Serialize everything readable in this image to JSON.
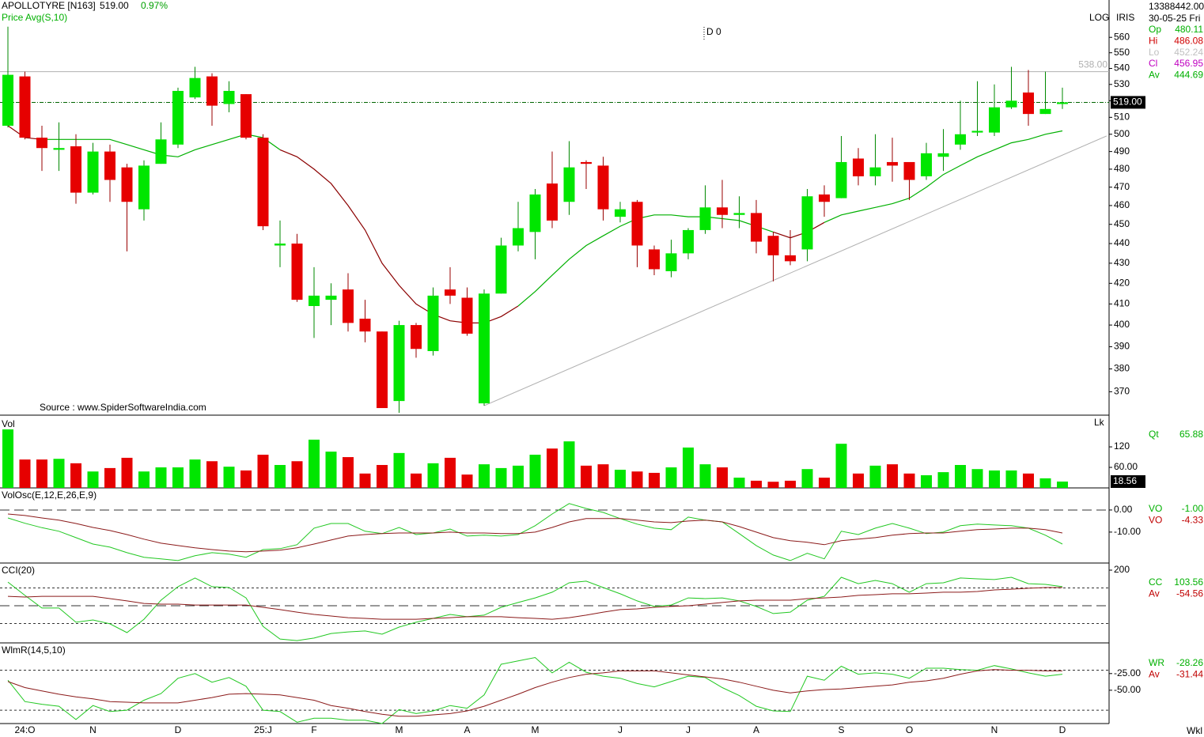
{
  "header": {
    "symbol": "APOLLOTYRE [N163]",
    "price": "519.00",
    "change": "0.97%",
    "marker": "D 0",
    "scale": "LOG",
    "name": "IRIS",
    "source": "Source : www.SpiderSoftwareIndia.com",
    "period": "Wkl",
    "total": "13388442.00",
    "date": "30-05-25 Fri"
  },
  "chart_data": [
    {
      "type": "candlestick",
      "log": true,
      "up_color": "#00e600",
      "down_color": "#e60000",
      "categories": [
        null,
        "24:O",
        null,
        null,
        null,
        "N",
        null,
        null,
        null,
        null,
        "D",
        null,
        null,
        null,
        null,
        "25:J",
        null,
        null,
        "F",
        null,
        null,
        null,
        null,
        "M",
        null,
        null,
        null,
        "A",
        null,
        null,
        null,
        "M",
        null,
        null,
        null,
        null,
        "J",
        null,
        null,
        null,
        "J",
        null,
        null,
        null,
        "A",
        null,
        null,
        null,
        null,
        "S",
        null,
        null,
        null,
        "O",
        null,
        null,
        null,
        null,
        "N",
        null,
        null,
        null,
        "D"
      ],
      "open": [
        505,
        535,
        498,
        491,
        493,
        467,
        490,
        481,
        458,
        483,
        494,
        522,
        535,
        518,
        524,
        498,
        439,
        440,
        409,
        412,
        417,
        403,
        397,
        366,
        400,
        388,
        417,
        413,
        365,
        415,
        439,
        446,
        472,
        462,
        484,
        482,
        454,
        462,
        437,
        426,
        435,
        447,
        459,
        455,
        456,
        444,
        434,
        437,
        466,
        464,
        486,
        476,
        484,
        484,
        476,
        487,
        494,
        501,
        501,
        516,
        525,
        512,
        518
      ],
      "high": [
        567,
        538,
        505,
        507,
        500,
        495,
        494,
        483,
        485,
        507,
        528,
        541,
        537,
        532,
        524,
        500,
        452,
        445,
        428,
        420,
        425,
        412,
        397,
        402,
        401,
        418,
        428,
        418,
        417,
        443,
        462,
        469,
        490,
        496,
        485,
        487,
        462,
        463,
        439,
        442,
        448,
        471,
        474,
        465,
        463,
        446,
        447,
        469,
        471,
        499,
        492,
        500,
        498,
        484,
        495,
        503,
        520,
        532,
        530,
        541,
        539,
        538,
        528
      ],
      "low": [
        504,
        497,
        479,
        479,
        461,
        466,
        462,
        436,
        452,
        483,
        492,
        521,
        505,
        513,
        497,
        447,
        428,
        411,
        394,
        400,
        397,
        392,
        363,
        361,
        385,
        386,
        410,
        395,
        364,
        415,
        436,
        432,
        448,
        455,
        469,
        452,
        451,
        428,
        424,
        423,
        432,
        445,
        448,
        448,
        435,
        421,
        429,
        431,
        454,
        464,
        471,
        471,
        473,
        463,
        474,
        479,
        491,
        499,
        499,
        515,
        505,
        512,
        515
      ],
      "close": [
        536,
        498,
        492,
        492,
        467,
        490,
        474,
        462,
        482,
        497,
        526,
        534,
        517,
        526,
        498,
        449,
        440,
        412,
        414,
        414,
        401,
        397,
        363,
        400,
        389,
        414,
        414,
        396,
        415,
        439,
        448,
        466,
        452,
        481,
        483,
        458,
        458,
        439,
        427,
        435,
        447,
        459,
        455,
        456,
        441,
        434,
        431,
        465,
        462,
        484,
        476,
        481,
        482,
        474,
        489,
        489,
        500,
        502,
        516,
        520,
        512,
        515,
        519
      ],
      "ylim": [
        360,
        585
      ],
      "yticks": [
        370,
        380,
        390,
        400,
        410,
        420,
        430,
        440,
        450,
        460,
        470,
        480,
        490,
        500,
        510,
        520,
        530,
        540,
        550,
        560
      ],
      "series": [
        {
          "name": "Price Avg(S,10)",
          "color": "#00b000",
          "values": [
            505,
            498,
            497,
            497,
            497,
            497,
            497,
            494,
            491,
            488,
            487,
            491,
            494,
            497,
            500,
            498,
            491,
            487,
            480,
            472,
            460,
            447,
            430,
            419,
            410,
            405,
            402,
            401,
            401,
            404,
            409,
            416,
            424,
            432,
            439,
            444,
            449,
            453,
            455,
            455,
            454,
            454,
            453,
            452,
            449,
            446,
            443,
            446,
            451,
            455,
            457,
            459,
            461,
            464,
            470,
            477,
            482,
            487,
            491,
            495,
            497,
            500,
            502
          ],
          "colors": [
            "#8b0000",
            "#8b0000",
            "#00b000",
            "#00b000",
            "#00b000",
            "#00b000",
            "#00b000",
            "#00b000",
            "#00b000",
            "#00b000",
            "#00b000",
            "#00b000",
            "#00b000",
            "#00b000",
            "#00b000",
            "#00b000",
            "#8b0000",
            "#8b0000",
            "#8b0000",
            "#8b0000",
            "#8b0000",
            "#8b0000",
            "#8b0000",
            "#8b0000",
            "#8b0000",
            "#8b0000",
            "#8b0000",
            "#8b0000",
            "#8b0000",
            "#8b0000",
            "#00b000",
            "#00b000",
            "#00b000",
            "#00b000",
            "#00b000",
            "#00b000",
            "#00b000",
            "#00b000",
            "#00b000",
            "#00b000",
            "#00b000",
            "#00b000",
            "#00b000",
            "#00b000",
            "#00b000",
            "#8b0000",
            "#8b0000",
            "#8b0000",
            "#00b000",
            "#00b000",
            "#00b000",
            "#00b000",
            "#00b000",
            "#00b000",
            "#00b000",
            "#00b000",
            "#00b000",
            "#00b000",
            "#00b000",
            "#00b000",
            "#00b000",
            "#00b000",
            "#00b000"
          ]
        }
      ],
      "hlines": [
        {
          "value": 538,
          "label": "538.00",
          "color": "#b0b0b0"
        },
        {
          "value": 519,
          "label": "519.00",
          "color": "#006400"
        }
      ],
      "trendline": {
        "x": [
          28,
          64.6
        ],
        "y": [
          364,
          499
        ],
        "color": "#b0b0b0"
      },
      "readout": [
        {
          "label": "Op",
          "value": 480.11,
          "color": "#00b000"
        },
        {
          "label": "Hi",
          "value": 486.08,
          "color": "#d00000"
        },
        {
          "label": "Lo",
          "value": 452.24,
          "color": "#c0c0c0"
        },
        {
          "label": "Cl",
          "value": 456.95,
          "color": "#c000c0"
        },
        {
          "label": "Av",
          "value": 444.69,
          "color": "#00b000"
        }
      ]
    },
    {
      "type": "bar",
      "title": "Vol",
      "unit": "Lk",
      "ylim": [
        0,
        208
      ],
      "yticks": [
        120,
        {
          "value": 60,
          "label": "60.00"
        }
      ],
      "values": [
        171,
        83,
        83,
        85,
        72,
        48,
        58,
        88,
        48,
        60,
        60,
        83,
        78,
        62,
        51,
        97,
        67,
        78,
        141,
        106,
        90,
        42,
        67,
        102,
        42,
        72,
        88,
        39,
        69,
        58,
        65,
        97,
        115,
        136,
        65,
        69,
        53,
        48,
        44,
        60,
        118,
        69,
        60,
        30,
        21,
        18,
        21,
        55,
        30,
        129,
        42,
        65,
        69,
        42,
        37,
        46,
        67,
        55,
        51,
        51,
        42,
        28,
        18.56
      ],
      "readout": [
        {
          "label": "Qt",
          "value": 65.88,
          "color": "#00b000"
        }
      ]
    },
    {
      "type": "line",
      "title": "VolOsc(E,12,E,26,E,9)",
      "ylim": [
        -24,
        10
      ],
      "yticks": [
        {
          "value": 0,
          "label": "0.00"
        },
        {
          "value": -10,
          "label": "-10.00"
        }
      ],
      "hlines": [
        0
      ],
      "series": [
        {
          "color": "#22c822",
          "values": [
            -3.6,
            -6,
            -8,
            -9.6,
            -12.5,
            -15.4,
            -16.8,
            -19.3,
            -21.4,
            -22.1,
            -22.9,
            -20.7,
            -19.3,
            -20,
            -21.4,
            -17.9,
            -17.5,
            -15.7,
            -8.2,
            -6.1,
            -6.1,
            -9.6,
            -10.7,
            -7.9,
            -11.1,
            -10.4,
            -8.6,
            -11.8,
            -11.4,
            -11.8,
            -11.1,
            -7.1,
            -1.8,
            2.9,
            0.7,
            -1.1,
            -3.9,
            -6.4,
            -8.2,
            -8.9,
            -3.2,
            -4.6,
            -5.4,
            -10.7,
            -16.1,
            -20.4,
            -22.9,
            -19.6,
            -22.1,
            -9.6,
            -11.1,
            -8.2,
            -6.1,
            -8.2,
            -10.7,
            -10,
            -7.1,
            -6.4,
            -6.8,
            -7.1,
            -8.2,
            -11.4,
            -15.4
          ]
        },
        {
          "color": "#8b1a1a",
          "values": [
            -1.8,
            -2.5,
            -3.6,
            -4.6,
            -6.1,
            -7.9,
            -9.3,
            -11.1,
            -13.2,
            -15,
            -16.1,
            -17.1,
            -17.9,
            -18.6,
            -18.9,
            -18.6,
            -18.2,
            -17.1,
            -15.4,
            -13.6,
            -11.8,
            -11.1,
            -10.7,
            -10.4,
            -10.4,
            -10.4,
            -10,
            -10.4,
            -10.4,
            -10.7,
            -10.7,
            -10,
            -7.9,
            -5.4,
            -3.9,
            -3.9,
            -3.9,
            -4.6,
            -5.4,
            -5.7,
            -5,
            -4.6,
            -5.4,
            -7.5,
            -10,
            -12.5,
            -13.9,
            -14.6,
            -15.7,
            -13.9,
            -13.2,
            -12.5,
            -11.4,
            -10.7,
            -10.4,
            -10.4,
            -9.6,
            -8.9,
            -8.6,
            -8.2,
            -8.2,
            -8.9,
            -10.4
          ]
        }
      ],
      "readout": [
        {
          "label": "VO",
          "value": "-1.00",
          "color": "#00b000"
        },
        {
          "label": "VO",
          "value": "-4.33",
          "color": "#c00000"
        }
      ]
    },
    {
      "type": "line",
      "title": "CCI(20)",
      "ylim": [
        -209,
        240
      ],
      "yticks": [
        200
      ],
      "hlines": [
        100,
        0,
        -100
      ],
      "series": [
        {
          "color": "#22c822",
          "values": [
            133,
            58,
            -13,
            -13,
            -93,
            -80,
            -102,
            -151,
            -76,
            31,
            107,
            156,
            107,
            102,
            44,
            -116,
            -187,
            -196,
            -182,
            -156,
            -147,
            -142,
            -160,
            -120,
            -93,
            -71,
            -49,
            -62,
            -53,
            -9,
            18,
            44,
            76,
            129,
            138,
            102,
            67,
            27,
            -4,
            4,
            44,
            40,
            44,
            27,
            -4,
            -44,
            -36,
            31,
            53,
            160,
            124,
            142,
            124,
            76,
            124,
            129,
            156,
            151,
            147,
            160,
            124,
            120,
            107
          ]
        },
        {
          "color": "#8b1a1a",
          "values": [
            53,
            49,
            53,
            53,
            53,
            53,
            40,
            27,
            13,
            9,
            9,
            4,
            4,
            4,
            4,
            -9,
            -22,
            -36,
            -49,
            -58,
            -67,
            -71,
            -76,
            -76,
            -76,
            -71,
            -67,
            -62,
            -62,
            -62,
            -67,
            -71,
            -76,
            -67,
            -53,
            -36,
            -22,
            -18,
            -9,
            -4,
            0,
            9,
            18,
            27,
            31,
            31,
            31,
            40,
            44,
            49,
            58,
            62,
            67,
            67,
            71,
            76,
            76,
            80,
            89,
            93,
            98,
            102,
            102
          ]
        }
      ],
      "readout": [
        {
          "label": "CC",
          "value": 103.56,
          "color": "#00b000"
        },
        {
          "label": "Av",
          "value": -54.56,
          "color": "#c00000"
        }
      ]
    },
    {
      "type": "line",
      "title": "WlmR(14,5,10)",
      "ylim": [
        -100,
        21
      ],
      "yticks": [
        {
          "value": -25,
          "label": "-25.00"
        },
        {
          "value": -50,
          "label": "-50.00"
        }
      ],
      "hlines": [
        -20,
        -80
      ],
      "series": [
        {
          "color": "#22c822",
          "values": [
            -35,
            -67,
            -71,
            -74,
            -94,
            -73,
            -82,
            -80,
            -65,
            -55,
            -32,
            -25,
            -38,
            -31,
            -44,
            -80,
            -82,
            -98,
            -92,
            -92,
            -95,
            -95,
            -100,
            -79,
            -85,
            -81,
            -73,
            -77,
            -57,
            -11,
            -6,
            -1,
            -24,
            -8,
            -23,
            -29,
            -32,
            -40,
            -45,
            -37,
            -29,
            -31,
            -46,
            -58,
            -74,
            -81,
            -82,
            -29,
            -35,
            -14,
            -26,
            -24,
            -26,
            -32,
            -17,
            -17,
            -19,
            -20,
            -13,
            -18,
            -24,
            -29,
            -26
          ]
        },
        {
          "color": "#8b1a1a",
          "values": [
            -37,
            -46,
            -51,
            -56,
            -60,
            -63,
            -67,
            -68,
            -69,
            -69,
            -69,
            -65,
            -61,
            -56,
            -55,
            -56,
            -57,
            -61,
            -65,
            -73,
            -77,
            -82,
            -86,
            -89,
            -89,
            -87,
            -85,
            -81,
            -74,
            -65,
            -56,
            -46,
            -38,
            -31,
            -26,
            -24,
            -21,
            -21,
            -21,
            -24,
            -27,
            -30,
            -33,
            -38,
            -44,
            -50,
            -54,
            -51,
            -49,
            -48,
            -46,
            -44,
            -42,
            -38,
            -36,
            -32,
            -26,
            -21,
            -19,
            -20,
            -20,
            -21,
            -21
          ]
        }
      ],
      "readout": [
        {
          "label": "WR",
          "value": -28.26,
          "color": "#00b000"
        },
        {
          "label": "Av",
          "value": -31.44,
          "color": "#c00000"
        }
      ]
    }
  ]
}
